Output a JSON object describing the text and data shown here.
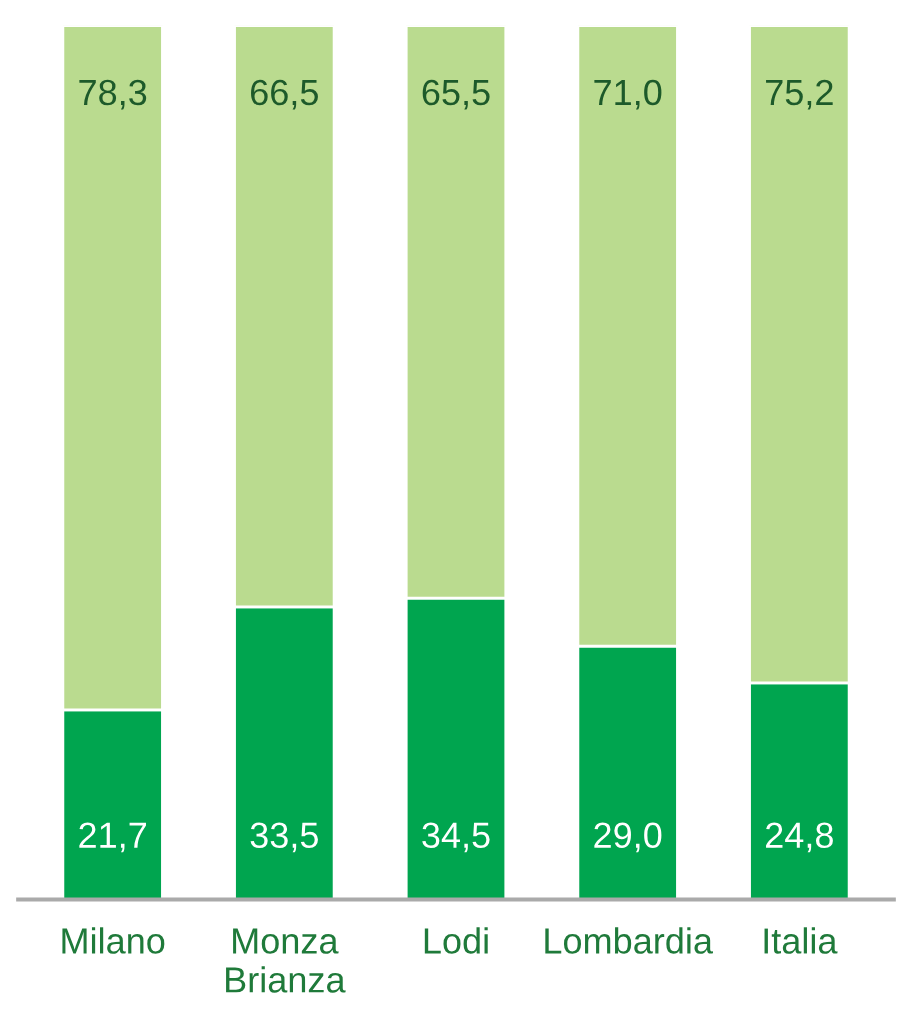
{
  "chart_data": {
    "type": "bar",
    "stacked": true,
    "categories": [
      "Milano",
      "Monza\nBrianza",
      "Lodi",
      "Lombardia",
      "Italia"
    ],
    "series": [
      {
        "color": "#00a54f",
        "values": [
          21.7,
          33.5,
          34.5,
          29.0,
          24.8
        ],
        "value_labels": [
          "21,7",
          "33,5",
          "34,5",
          "29,0",
          "24,8"
        ]
      },
      {
        "color": "#badb8f",
        "values": [
          78.3,
          66.5,
          65.5,
          71.0,
          75.2
        ],
        "value_labels": [
          "78,3",
          "66,5",
          "65,5",
          "71,0",
          "75,2"
        ]
      }
    ]
  }
}
